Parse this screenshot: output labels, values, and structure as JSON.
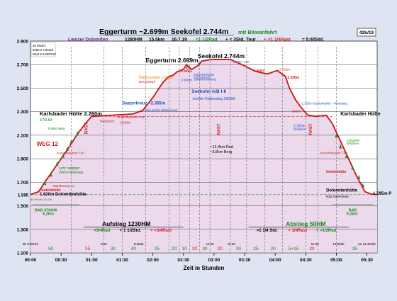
{
  "chart_data": {
    "type": "area",
    "title_main": "Eggerturm ~2.699m  Seekofel 2.744m",
    "title_suffix": "mit Bikeanfahrt",
    "badge": "42b/19",
    "info_line": {
      "region": "Lienzer Dolomiten",
      "hm": "1280HM",
      "km": "15,5km",
      "date": "16.7.19",
      "bike": "<1 1/2Rad",
      "tour": "+ < 3Std. Tour",
      "rast": "+ >1 1/4Rast",
      "total": "= 5:40Std."
    },
    "info_box": [
      "ab Riedhi:",
      "545Km 3:30Std",
      "Maut € 8,00/PKW"
    ],
    "xlabel": "Zeit in Stunden",
    "x_ticks": [
      "00:00",
      "00:30",
      "01:00",
      "01:30",
      "02:00",
      "02:30",
      "03:00",
      "03:30",
      "04:00",
      "04:30",
      "05:00",
      "05:30"
    ],
    "y_ticks": [
      "1.100",
      "1.300",
      "1.500",
      "1.700",
      "1.900",
      "2.100",
      "2.300",
      "2.500",
      "2.700",
      "2.900"
    ],
    "y_extra": "1.595",
    "ylim": [
      1100,
      2900
    ],
    "xlim": [
      0,
      340
    ],
    "profile": [
      {
        "t": 0,
        "h": 1595
      },
      {
        "t": 8,
        "h": 1620
      },
      {
        "t": 14,
        "h": 1700
      },
      {
        "t": 22,
        "h": 1800
      },
      {
        "t": 30,
        "h": 1900
      },
      {
        "t": 38,
        "h": 2000
      },
      {
        "t": 46,
        "h": 2110
      },
      {
        "t": 54,
        "h": 2200
      },
      {
        "t": 60,
        "h": 2260
      },
      {
        "t": 70,
        "h": 2265
      },
      {
        "t": 80,
        "h": 2270
      },
      {
        "t": 90,
        "h": 2275
      },
      {
        "t": 100,
        "h": 2280
      },
      {
        "t": 110,
        "h": 2310
      },
      {
        "t": 120,
        "h": 2420
      },
      {
        "t": 130,
        "h": 2550
      },
      {
        "t": 136,
        "h": 2600
      },
      {
        "t": 140,
        "h": 2610
      },
      {
        "t": 144,
        "h": 2640
      },
      {
        "t": 150,
        "h": 2660
      },
      {
        "t": 153,
        "h": 2699
      },
      {
        "t": 158,
        "h": 2660
      },
      {
        "t": 164,
        "h": 2690
      },
      {
        "t": 168,
        "h": 2730
      },
      {
        "t": 178,
        "h": 2744
      },
      {
        "t": 196,
        "h": 2744
      },
      {
        "t": 210,
        "h": 2690
      },
      {
        "t": 220,
        "h": 2645
      },
      {
        "t": 232,
        "h": 2620
      },
      {
        "t": 242,
        "h": 2650
      },
      {
        "t": 250,
        "h": 2600
      },
      {
        "t": 254,
        "h": 2500
      },
      {
        "t": 260,
        "h": 2400
      },
      {
        "t": 266,
        "h": 2330
      },
      {
        "t": 272,
        "h": 2270
      },
      {
        "t": 280,
        "h": 2260
      },
      {
        "t": 290,
        "h": 2270
      },
      {
        "t": 296,
        "h": 2200
      },
      {
        "t": 304,
        "h": 2050
      },
      {
        "t": 312,
        "h": 1900
      },
      {
        "t": 320,
        "h": 1750
      },
      {
        "t": 328,
        "h": 1620
      },
      {
        "t": 334,
        "h": 1600
      },
      {
        "t": 340,
        "h": 1595
      }
    ],
    "dividers": [
      40,
      72,
      90,
      113,
      136,
      146,
      156,
      166,
      176,
      196,
      212,
      230,
      247,
      270,
      282,
      300
    ],
    "bottom_segments": [
      {
        "t": 20,
        "label": "50",
        "color": "#1a8a1a"
      },
      {
        "t": 56,
        "label": "35",
        "color": "#cc2222"
      },
      {
        "t": 81,
        "label": "30",
        "color": "#1a8a1a"
      },
      {
        "t": 101,
        "label": "40",
        "color": "#1a8a1a"
      },
      {
        "t": 124,
        "label": "25",
        "color": "#1a8a1a"
      },
      {
        "t": 141,
        "label": "20",
        "color": "#1a8a1a"
      },
      {
        "t": 151,
        "label": "10",
        "color": "#1a8a1a"
      },
      {
        "t": 161,
        "label": "20",
        "color": "#cc2222"
      },
      {
        "t": 171,
        "label": "30",
        "color": "#1a8a1a"
      },
      {
        "t": 186,
        "label": "20",
        "color": "#cc2222"
      },
      {
        "t": 204,
        "label": "30",
        "color": "#1a8a1a"
      },
      {
        "t": 221,
        "label": "25",
        "color": "#1a8a1a"
      },
      {
        "t": 238,
        "label": "20",
        "color": "#1a8a1a"
      },
      {
        "t": 258,
        "label": "5+15",
        "color": "#1a8a1a"
      },
      {
        "t": 276,
        "label": "20",
        "color": "#cc2222"
      },
      {
        "t": 318,
        "label": "35",
        "color": "#1a8a1a"
      }
    ],
    "bottom_times": [
      {
        "t": 0,
        "label": "ab 8:00Uhr"
      },
      {
        "t": 72,
        "label": "8:50"
      },
      {
        "t": 106,
        "label": "9:25ab"
      },
      {
        "t": 176,
        "label": "11:00"
      },
      {
        "t": 197,
        "label": "11:20"
      },
      {
        "t": 279,
        "label": "12:46"
      },
      {
        "t": 302,
        "label": "13:05ab"
      },
      {
        "t": 330,
        "label": "an 13:40Uhr"
      }
    ],
    "rast_labels": [
      {
        "t": 56,
        "h": 2160,
        "label": "RAST"
      },
      {
        "t": 186,
        "h": 2150,
        "label": "RAST"
      },
      {
        "t": 276,
        "h": 2150,
        "label": "RAST"
      }
    ],
    "annotations": [
      {
        "t": 9,
        "h": 2268,
        "text": "Karlsbader Hütte 2.260m",
        "color": "#000000",
        "size": 7.5,
        "weight": "bold"
      },
      {
        "t": 9,
        "h": 2220,
        "text": "670HM",
        "color": "#1a8a1a",
        "size": 5.5,
        "weight": "normal"
      },
      {
        "t": 17,
        "h": 2148,
        "text": "R.Bike Weg",
        "color": "#1a8a1a",
        "size": 4.5,
        "weight": "normal"
      },
      {
        "t": 6,
        "h": 2010,
        "text": "WEG 12",
        "color": "#cc2222",
        "size": 8,
        "weight": "bold"
      },
      {
        "t": 26,
        "h": 1940,
        "text": "Kerschbaumer Törl",
        "color": "#cc2222",
        "size": 4.5,
        "weight": "normal"
      },
      {
        "t": 28,
        "h": 1810,
        "text": "sehr ruppiger",
        "color": "#1a8a1a",
        "size": 5,
        "weight": "normal"
      },
      {
        "t": 28,
        "h": 1775,
        "text": "Wirtschaftsweg",
        "color": "#1a8a1a",
        "size": 5,
        "weight": "normal"
      },
      {
        "t": 22,
        "h": 1660,
        "text": "Wanderweg 12",
        "color": "#cc2222",
        "size": 4.5,
        "weight": "normal"
      },
      {
        "t": 10,
        "h": 1625,
        "text": "Insteinhütte",
        "color": "#cc2222",
        "size": 5,
        "weight": "bold"
      },
      {
        "t": 9,
        "h": 1588,
        "text": "1.620m Dolomitenhütte",
        "color": "#000000",
        "size": 6,
        "weight": "bold"
      },
      {
        "t": 0,
        "h": 1546,
        "text": "ab Riedhi 1013m",
        "color": "#1a8a1a",
        "size": 4,
        "weight": "normal"
      },
      {
        "t": 68,
        "h": 2210,
        "text": "Radldepot",
        "color": "#cc2222",
        "size": 4.5,
        "weight": "normal"
      },
      {
        "t": 85,
        "h": 2245,
        "text": "Kerschbaumer Törl",
        "color": "#cc2222",
        "size": 4.5,
        "weight": "normal"
      },
      {
        "t": 88,
        "h": 2200,
        "text": "2.285m",
        "color": "#cc2222",
        "size": 4.5,
        "weight": "normal"
      },
      {
        "t": 90,
        "h": 2360,
        "text": "Saazerkreuz ~2.355m",
        "color": "#1f4fbf",
        "size": 6,
        "weight": "bold"
      },
      {
        "t": 112,
        "h": 2305,
        "text": "blau-weiße Markierung",
        "color": "#1f4fbf",
        "size": 4.5,
        "weight": "normal"
      },
      {
        "t": 106,
        "h": 2580,
        "text": "Ödkarscharte 2.598m",
        "color": "#e07a00",
        "size": 5,
        "weight": "normal"
      },
      {
        "t": 106,
        "h": 2545,
        "text": "Simonskopf",
        "color": "#cc2222",
        "size": 4.5,
        "weight": "normal"
      },
      {
        "t": 113,
        "h": 2718,
        "text": "Eggerturm 2.699m",
        "color": "#000000",
        "size": 8.5,
        "weight": "bold"
      },
      {
        "t": 146,
        "h": 2635,
        "text": "~2.645m",
        "color": "#cc2222",
        "size": 4.5,
        "weight": "bold"
      },
      {
        "t": 148,
        "h": 2560,
        "text": "2.608m",
        "color": "#1f4fbf",
        "size": 4.5,
        "weight": "normal"
      },
      {
        "t": 153,
        "h": 2660,
        "text": "C",
        "color": "#000000",
        "size": 5,
        "weight": "bold"
      },
      {
        "t": 160,
        "h": 2605,
        "text": "Seilversicherter",
        "color": "#1f4fbf",
        "size": 4.3,
        "weight": "normal"
      },
      {
        "t": 160,
        "h": 2585,
        "text": "Felsquerung",
        "color": "#1f4fbf",
        "size": 4.3,
        "weight": "normal"
      },
      {
        "t": 160,
        "h": 2565,
        "text": "Seilversicherung",
        "color": "#1f4fbf",
        "size": 4.3,
        "weight": "normal"
      },
      {
        "t": 164,
        "h": 2705,
        "text": "I-II",
        "color": "#1f4fbf",
        "size": 4.5,
        "weight": "normal"
      },
      {
        "t": 164,
        "h": 2755,
        "text": "Seekofel 2.744m",
        "color": "#000000",
        "size": 8.5,
        "weight": "bold"
      },
      {
        "t": 199,
        "h": 2715,
        "text": "2.720m Grat",
        "color": "#1f4fbf",
        "size": 4,
        "weight": "normal"
      },
      {
        "t": 219,
        "h": 2640,
        "text": "2.645m",
        "color": "#cc2222",
        "size": 4.5,
        "weight": "bold"
      },
      {
        "t": 244,
        "h": 2650,
        "text": "2.602m",
        "color": "#cc2222",
        "size": 4.5,
        "weight": "normal"
      },
      {
        "t": 252,
        "h": 2582,
        "text": "2.536m",
        "color": "#cc2222",
        "size": 5,
        "weight": "bold"
      },
      {
        "t": 158,
        "h": 2460,
        "text": "Seekofel  A/B  I-II",
        "color": "#1f4fbf",
        "size": 6.5,
        "weight": "bold"
      },
      {
        "t": 159,
        "h": 2400,
        "text": "leichter Klettersteig 290HM",
        "color": "#1f4fbf",
        "size": 5,
        "weight": "normal"
      },
      {
        "t": 266,
        "h": 2360,
        "text": "2.355m Gedenktafel – Wettsteig",
        "color": "#1f4fbf",
        "size": 4.5,
        "weight": "normal"
      },
      {
        "t": 256,
        "h": 2295,
        "text": "Sfelort",
        "color": "#cc2222",
        "size": 4.5,
        "weight": "normal"
      },
      {
        "t": 258,
        "h": 2170,
        "text": "2.250m",
        "color": "#1f4fbf",
        "size": 5,
        "weight": "normal"
      },
      {
        "t": 258,
        "h": 2140,
        "text": "Seebach",
        "color": "#1f4fbf",
        "size": 4.5,
        "weight": "normal"
      },
      {
        "t": 304,
        "h": 2268,
        "text": "Karlsbader Hütte",
        "color": "#000000",
        "size": 7,
        "weight": "bold"
      },
      {
        "t": 310,
        "h": 2048,
        "text": "Langsam",
        "color": "#1a8a1a",
        "size": 4.5,
        "weight": "normal"
      },
      {
        "t": 310,
        "h": 2020,
        "text": "abfahren",
        "color": "#1a8a1a",
        "size": 4.5,
        "weight": "normal"
      },
      {
        "t": 284,
        "h": 1940,
        "text": "Kerschbaumer Törl",
        "color": "#cc2222",
        "size": 4.5,
        "weight": "normal"
      },
      {
        "t": 290,
        "h": 1780,
        "text": "Insteinhütte",
        "color": "#cc2222",
        "size": 5,
        "weight": "bold"
      },
      {
        "t": 290,
        "h": 1620,
        "text": "Dolomitenhütte",
        "color": "#000000",
        "size": 6,
        "weight": "bold"
      },
      {
        "t": 290,
        "h": 1570,
        "text": "Rad rüberheben",
        "color": "#000000",
        "size": 4.5,
        "weight": "normal"
      },
      {
        "t": 336,
        "h": 1595,
        "text": "1.595m P",
        "color": "#000000",
        "size": 6,
        "weight": "bold"
      },
      {
        "t": 176,
        "h": 1990,
        "text": "~12,4km Rad",
        "color": "#000000",
        "size": 5.5,
        "weight": "normal"
      },
      {
        "t": 176,
        "h": 1950,
        "text": "~3,8km Berg",
        "color": "#000000",
        "size": 5.5,
        "weight": "normal"
      }
    ],
    "left_summary": {
      "label": "RAD 670HM",
      "km": "6,2km"
    },
    "right_summary": {
      "label": "RAD",
      "km": "6,2km"
    },
    "aufstieg": {
      "title": "Aufstieg 1230HM",
      "line_a": ">3/4Rad",
      "line_b": "+ 1 1/2Std.",
      "line_c": "+ <3/4Rast"
    },
    "abstieg": {
      "title": "Abstieg 50HM",
      "line_a": ">1 1/4 Std.",
      "line_b": "+ 3/4Rast",
      "line_c": "+ >1/2Rad"
    },
    "colors": {
      "fill": "#ecd9ec",
      "line": "#cc1111",
      "grid": "#444444",
      "green": "#1a8a1a",
      "red": "#cc2222",
      "blue": "#1f4fbf"
    }
  }
}
